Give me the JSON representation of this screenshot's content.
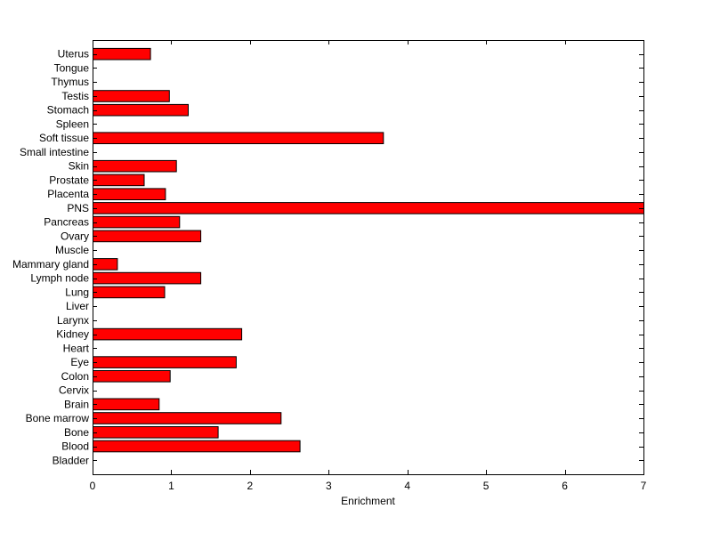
{
  "chart_data": {
    "type": "bar",
    "orientation": "horizontal",
    "title": "",
    "xlabel": "Enrichment",
    "ylabel": "",
    "xlim": [
      0,
      7
    ],
    "x_ticks": [
      "0",
      "1",
      "2",
      "3",
      "4",
      "5",
      "6",
      "7"
    ],
    "grid": false,
    "legend": "none",
    "bar_color": "#ff0000",
    "bar_edge_color": "#000000",
    "categories": [
      "Bladder",
      "Blood",
      "Bone",
      "Bone marrow",
      "Brain",
      "Cervix",
      "Colon",
      "Eye",
      "Heart",
      "Kidney",
      "Larynx",
      "Liver",
      "Lung",
      "Lymph node",
      "Mammary gland",
      "Muscle",
      "Ovary",
      "Pancreas",
      "PNS",
      "Placenta",
      "Prostate",
      "Skin",
      "Small intestine",
      "Soft tissue",
      "Spleen",
      "Stomach",
      "Testis",
      "Thymus",
      "Tongue",
      "Uterus"
    ],
    "values": [
      0,
      2.63,
      1.59,
      2.39,
      0.84,
      0,
      0.98,
      1.82,
      0,
      1.89,
      0,
      0,
      0.91,
      1.37,
      0.31,
      0,
      1.37,
      1.1,
      7.0,
      0.92,
      0.65,
      1.06,
      0,
      3.69,
      0,
      1.21,
      0.97,
      0,
      0,
      0.73
    ]
  }
}
